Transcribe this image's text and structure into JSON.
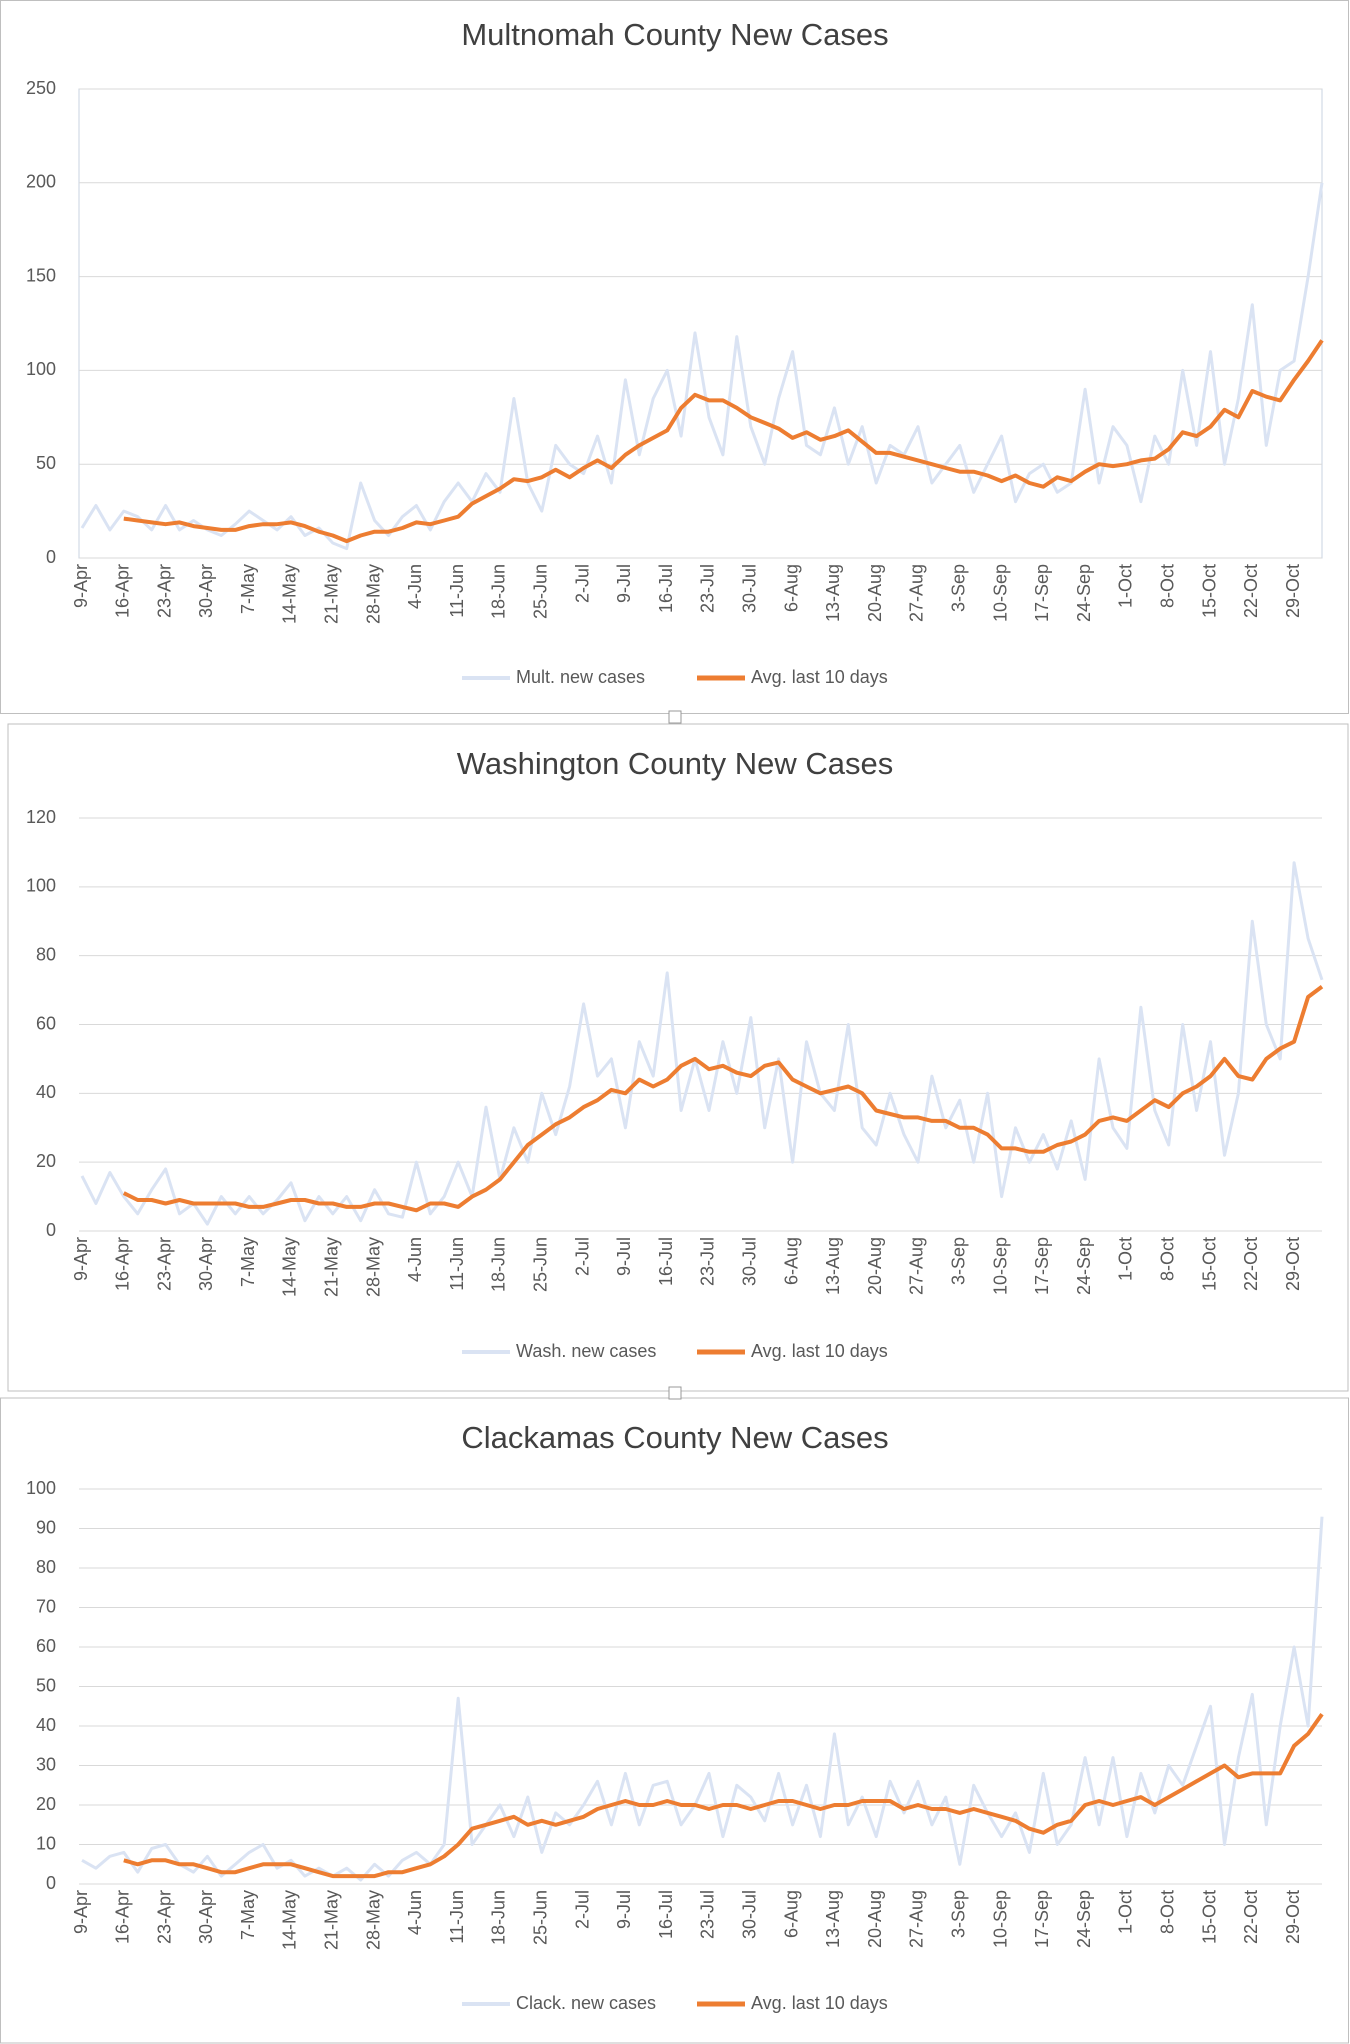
{
  "chart_data": [
    {
      "type": "line",
      "title": "Multnomah County New Cases",
      "categories": [
        "9-Apr",
        null,
        null,
        "16-Apr",
        null,
        null,
        "23-Apr",
        null,
        null,
        "30-Apr",
        null,
        null,
        "7-May",
        null,
        null,
        "14-May",
        null,
        null,
        "21-May",
        null,
        null,
        "28-May",
        null,
        null,
        "4-Jun",
        null,
        null,
        "11-Jun",
        null,
        null,
        "18-Jun",
        null,
        null,
        "25-Jun",
        null,
        null,
        "2-Jul",
        null,
        null,
        "9-Jul",
        null,
        null,
        "16-Jul",
        null,
        null,
        "23-Jul",
        null,
        null,
        "30-Jul",
        null,
        null,
        "6-Aug",
        null,
        null,
        "13-Aug",
        null,
        null,
        "20-Aug",
        null,
        null,
        "27-Aug",
        null,
        null,
        "3-Sep",
        null,
        null,
        "10-Sep",
        null,
        null,
        "17-Sep",
        null,
        null,
        "24-Sep",
        null,
        null,
        "1-Oct",
        null,
        null,
        "8-Oct",
        null,
        null,
        "15-Oct",
        null,
        null,
        "22-Oct",
        null,
        null,
        "29-Oct",
        null,
        null
      ],
      "series": [
        {
          "name": "Mult. new cases",
          "color": "#dae3f3",
          "values": [
            16,
            28,
            15,
            25,
            22,
            15,
            28,
            15,
            20,
            15,
            12,
            18,
            25,
            20,
            15,
            22,
            12,
            16,
            8,
            5,
            40,
            20,
            12,
            22,
            28,
            15,
            30,
            40,
            30,
            45,
            35,
            85,
            40,
            25,
            60,
            50,
            45,
            65,
            40,
            95,
            55,
            85,
            100,
            65,
            120,
            75,
            55,
            118,
            70,
            50,
            85,
            110,
            60,
            55,
            80,
            50,
            70,
            40,
            60,
            55,
            70,
            40,
            50,
            60,
            35,
            50,
            65,
            30,
            45,
            50,
            35,
            40,
            90,
            40,
            70,
            60,
            30,
            65,
            50,
            100,
            60,
            110,
            50,
            85,
            135,
            60,
            100,
            105,
            150,
            200
          ]
        },
        {
          "name": "Avg. last 10 days",
          "color": "#ed7d31",
          "values": [
            null,
            null,
            null,
            21,
            20,
            19,
            18,
            19,
            17,
            16,
            15,
            15,
            17,
            18,
            18,
            19,
            17,
            14,
            12,
            9,
            12,
            14,
            14,
            16,
            19,
            18,
            20,
            22,
            29,
            33,
            37,
            42,
            41,
            43,
            47,
            43,
            48,
            52,
            48,
            55,
            60,
            64,
            68,
            80,
            87,
            84,
            84,
            80,
            75,
            72,
            69,
            64,
            67,
            63,
            65,
            68,
            62,
            56,
            56,
            54,
            52,
            50,
            48,
            46,
            46,
            44,
            41,
            44,
            40,
            38,
            43,
            41,
            46,
            50,
            49,
            50,
            52,
            53,
            58,
            67,
            65,
            70,
            79,
            75,
            89,
            86,
            84,
            95,
            105,
            116
          ]
        }
      ],
      "ylim": [
        0,
        250
      ],
      "yticks": [
        0,
        50,
        100,
        150,
        200,
        250
      ],
      "grid": true
    },
    {
      "type": "line",
      "title": "Washington County New Cases",
      "categories": [
        "9-Apr",
        null,
        null,
        "16-Apr",
        null,
        null,
        "23-Apr",
        null,
        null,
        "30-Apr",
        null,
        null,
        "7-May",
        null,
        null,
        "14-May",
        null,
        null,
        "21-May",
        null,
        null,
        "28-May",
        null,
        null,
        "4-Jun",
        null,
        null,
        "11-Jun",
        null,
        null,
        "18-Jun",
        null,
        null,
        "25-Jun",
        null,
        null,
        "2-Jul",
        null,
        null,
        "9-Jul",
        null,
        null,
        "16-Jul",
        null,
        null,
        "23-Jul",
        null,
        null,
        "30-Jul",
        null,
        null,
        "6-Aug",
        null,
        null,
        "13-Aug",
        null,
        null,
        "20-Aug",
        null,
        null,
        "27-Aug",
        null,
        null,
        "3-Sep",
        null,
        null,
        "10-Sep",
        null,
        null,
        "17-Sep",
        null,
        null,
        "24-Sep",
        null,
        null,
        "1-Oct",
        null,
        null,
        "8-Oct",
        null,
        null,
        "15-Oct",
        null,
        null,
        "22-Oct",
        null,
        null,
        "29-Oct",
        null,
        null
      ],
      "series": [
        {
          "name": "Wash. new cases",
          "color": "#dae3f3",
          "values": [
            16,
            8,
            17,
            10,
            5,
            12,
            18,
            5,
            8,
            2,
            10,
            5,
            10,
            5,
            9,
            14,
            3,
            10,
            5,
            10,
            3,
            12,
            5,
            4,
            20,
            5,
            10,
            20,
            10,
            36,
            15,
            30,
            20,
            40,
            28,
            42,
            66,
            45,
            50,
            30,
            55,
            45,
            75,
            35,
            50,
            35,
            55,
            40,
            62,
            30,
            50,
            20,
            55,
            40,
            35,
            60,
            30,
            25,
            40,
            28,
            20,
            45,
            30,
            38,
            20,
            40,
            10,
            30,
            20,
            28,
            18,
            32,
            15,
            50,
            30,
            24,
            65,
            35,
            25,
            60,
            35,
            55,
            22,
            40,
            90,
            60,
            50,
            107,
            85,
            73
          ]
        },
        {
          "name": "Avg. last 10 days",
          "color": "#ed7d31",
          "values": [
            null,
            null,
            null,
            11,
            9,
            9,
            8,
            9,
            8,
            8,
            8,
            8,
            7,
            7,
            8,
            9,
            9,
            8,
            8,
            7,
            7,
            8,
            8,
            7,
            6,
            8,
            8,
            7,
            10,
            12,
            15,
            20,
            25,
            28,
            31,
            33,
            36,
            38,
            41,
            40,
            44,
            42,
            44,
            48,
            50,
            47,
            48,
            46,
            45,
            48,
            49,
            44,
            42,
            40,
            41,
            42,
            40,
            35,
            34,
            33,
            33,
            32,
            32,
            30,
            30,
            28,
            24,
            24,
            23,
            23,
            25,
            26,
            28,
            32,
            33,
            32,
            35,
            38,
            36,
            40,
            42,
            45,
            50,
            45,
            44,
            50,
            53,
            55,
            68,
            71
          ]
        }
      ],
      "ylim": [
        0,
        120
      ],
      "yticks": [
        0,
        20,
        40,
        60,
        80,
        100,
        120
      ],
      "grid": true
    },
    {
      "type": "line",
      "title": "Clackamas County New Cases",
      "categories": [
        "9-Apr",
        null,
        null,
        "16-Apr",
        null,
        null,
        "23-Apr",
        null,
        null,
        "30-Apr",
        null,
        null,
        "7-May",
        null,
        null,
        "14-May",
        null,
        null,
        "21-May",
        null,
        null,
        "28-May",
        null,
        null,
        "4-Jun",
        null,
        null,
        "11-Jun",
        null,
        null,
        "18-Jun",
        null,
        null,
        "25-Jun",
        null,
        null,
        "2-Jul",
        null,
        null,
        "9-Jul",
        null,
        null,
        "16-Jul",
        null,
        null,
        "23-Jul",
        null,
        null,
        "30-Jul",
        null,
        null,
        "6-Aug",
        null,
        null,
        "13-Aug",
        null,
        null,
        "20-Aug",
        null,
        null,
        "27-Aug",
        null,
        null,
        "3-Sep",
        null,
        null,
        "10-Sep",
        null,
        null,
        "17-Sep",
        null,
        null,
        "24-Sep",
        null,
        null,
        "1-Oct",
        null,
        null,
        "8-Oct",
        null,
        null,
        "15-Oct",
        null,
        null,
        "22-Oct",
        null,
        null,
        "29-Oct",
        null,
        null
      ],
      "series": [
        {
          "name": "Clack. new cases",
          "color": "#dae3f3",
          "values": [
            6,
            4,
            7,
            8,
            3,
            9,
            10,
            5,
            3,
            7,
            2,
            5,
            8,
            10,
            4,
            6,
            2,
            4,
            2,
            4,
            1,
            5,
            2,
            6,
            8,
            5,
            10,
            47,
            10,
            15,
            20,
            12,
            22,
            8,
            18,
            15,
            20,
            26,
            15,
            28,
            15,
            25,
            26,
            15,
            20,
            28,
            12,
            25,
            22,
            16,
            28,
            15,
            25,
            12,
            38,
            15,
            22,
            12,
            26,
            18,
            26,
            15,
            22,
            5,
            25,
            18,
            12,
            18,
            8,
            28,
            10,
            15,
            32,
            15,
            32,
            12,
            28,
            18,
            30,
            25,
            35,
            45,
            10,
            32,
            48,
            15,
            40,
            60,
            40,
            93
          ]
        },
        {
          "name": "Avg. last 10 days",
          "color": "#ed7d31",
          "values": [
            null,
            null,
            null,
            6,
            5,
            6,
            6,
            5,
            5,
            4,
            3,
            3,
            4,
            5,
            5,
            5,
            4,
            3,
            2,
            2,
            2,
            2,
            3,
            3,
            4,
            5,
            7,
            10,
            14,
            15,
            16,
            17,
            15,
            16,
            15,
            16,
            17,
            19,
            20,
            21,
            20,
            20,
            21,
            20,
            20,
            19,
            20,
            20,
            19,
            20,
            21,
            21,
            20,
            19,
            20,
            20,
            21,
            21,
            21,
            19,
            20,
            19,
            19,
            18,
            19,
            18,
            17,
            16,
            14,
            13,
            15,
            16,
            20,
            21,
            20,
            21,
            22,
            20,
            22,
            24,
            26,
            28,
            30,
            27,
            28,
            28,
            28,
            35,
            38,
            43
          ]
        }
      ],
      "ylim": [
        0,
        100
      ],
      "yticks": [
        0,
        10,
        20,
        30,
        40,
        50,
        60,
        70,
        80,
        90,
        100
      ],
      "grid": true
    }
  ]
}
